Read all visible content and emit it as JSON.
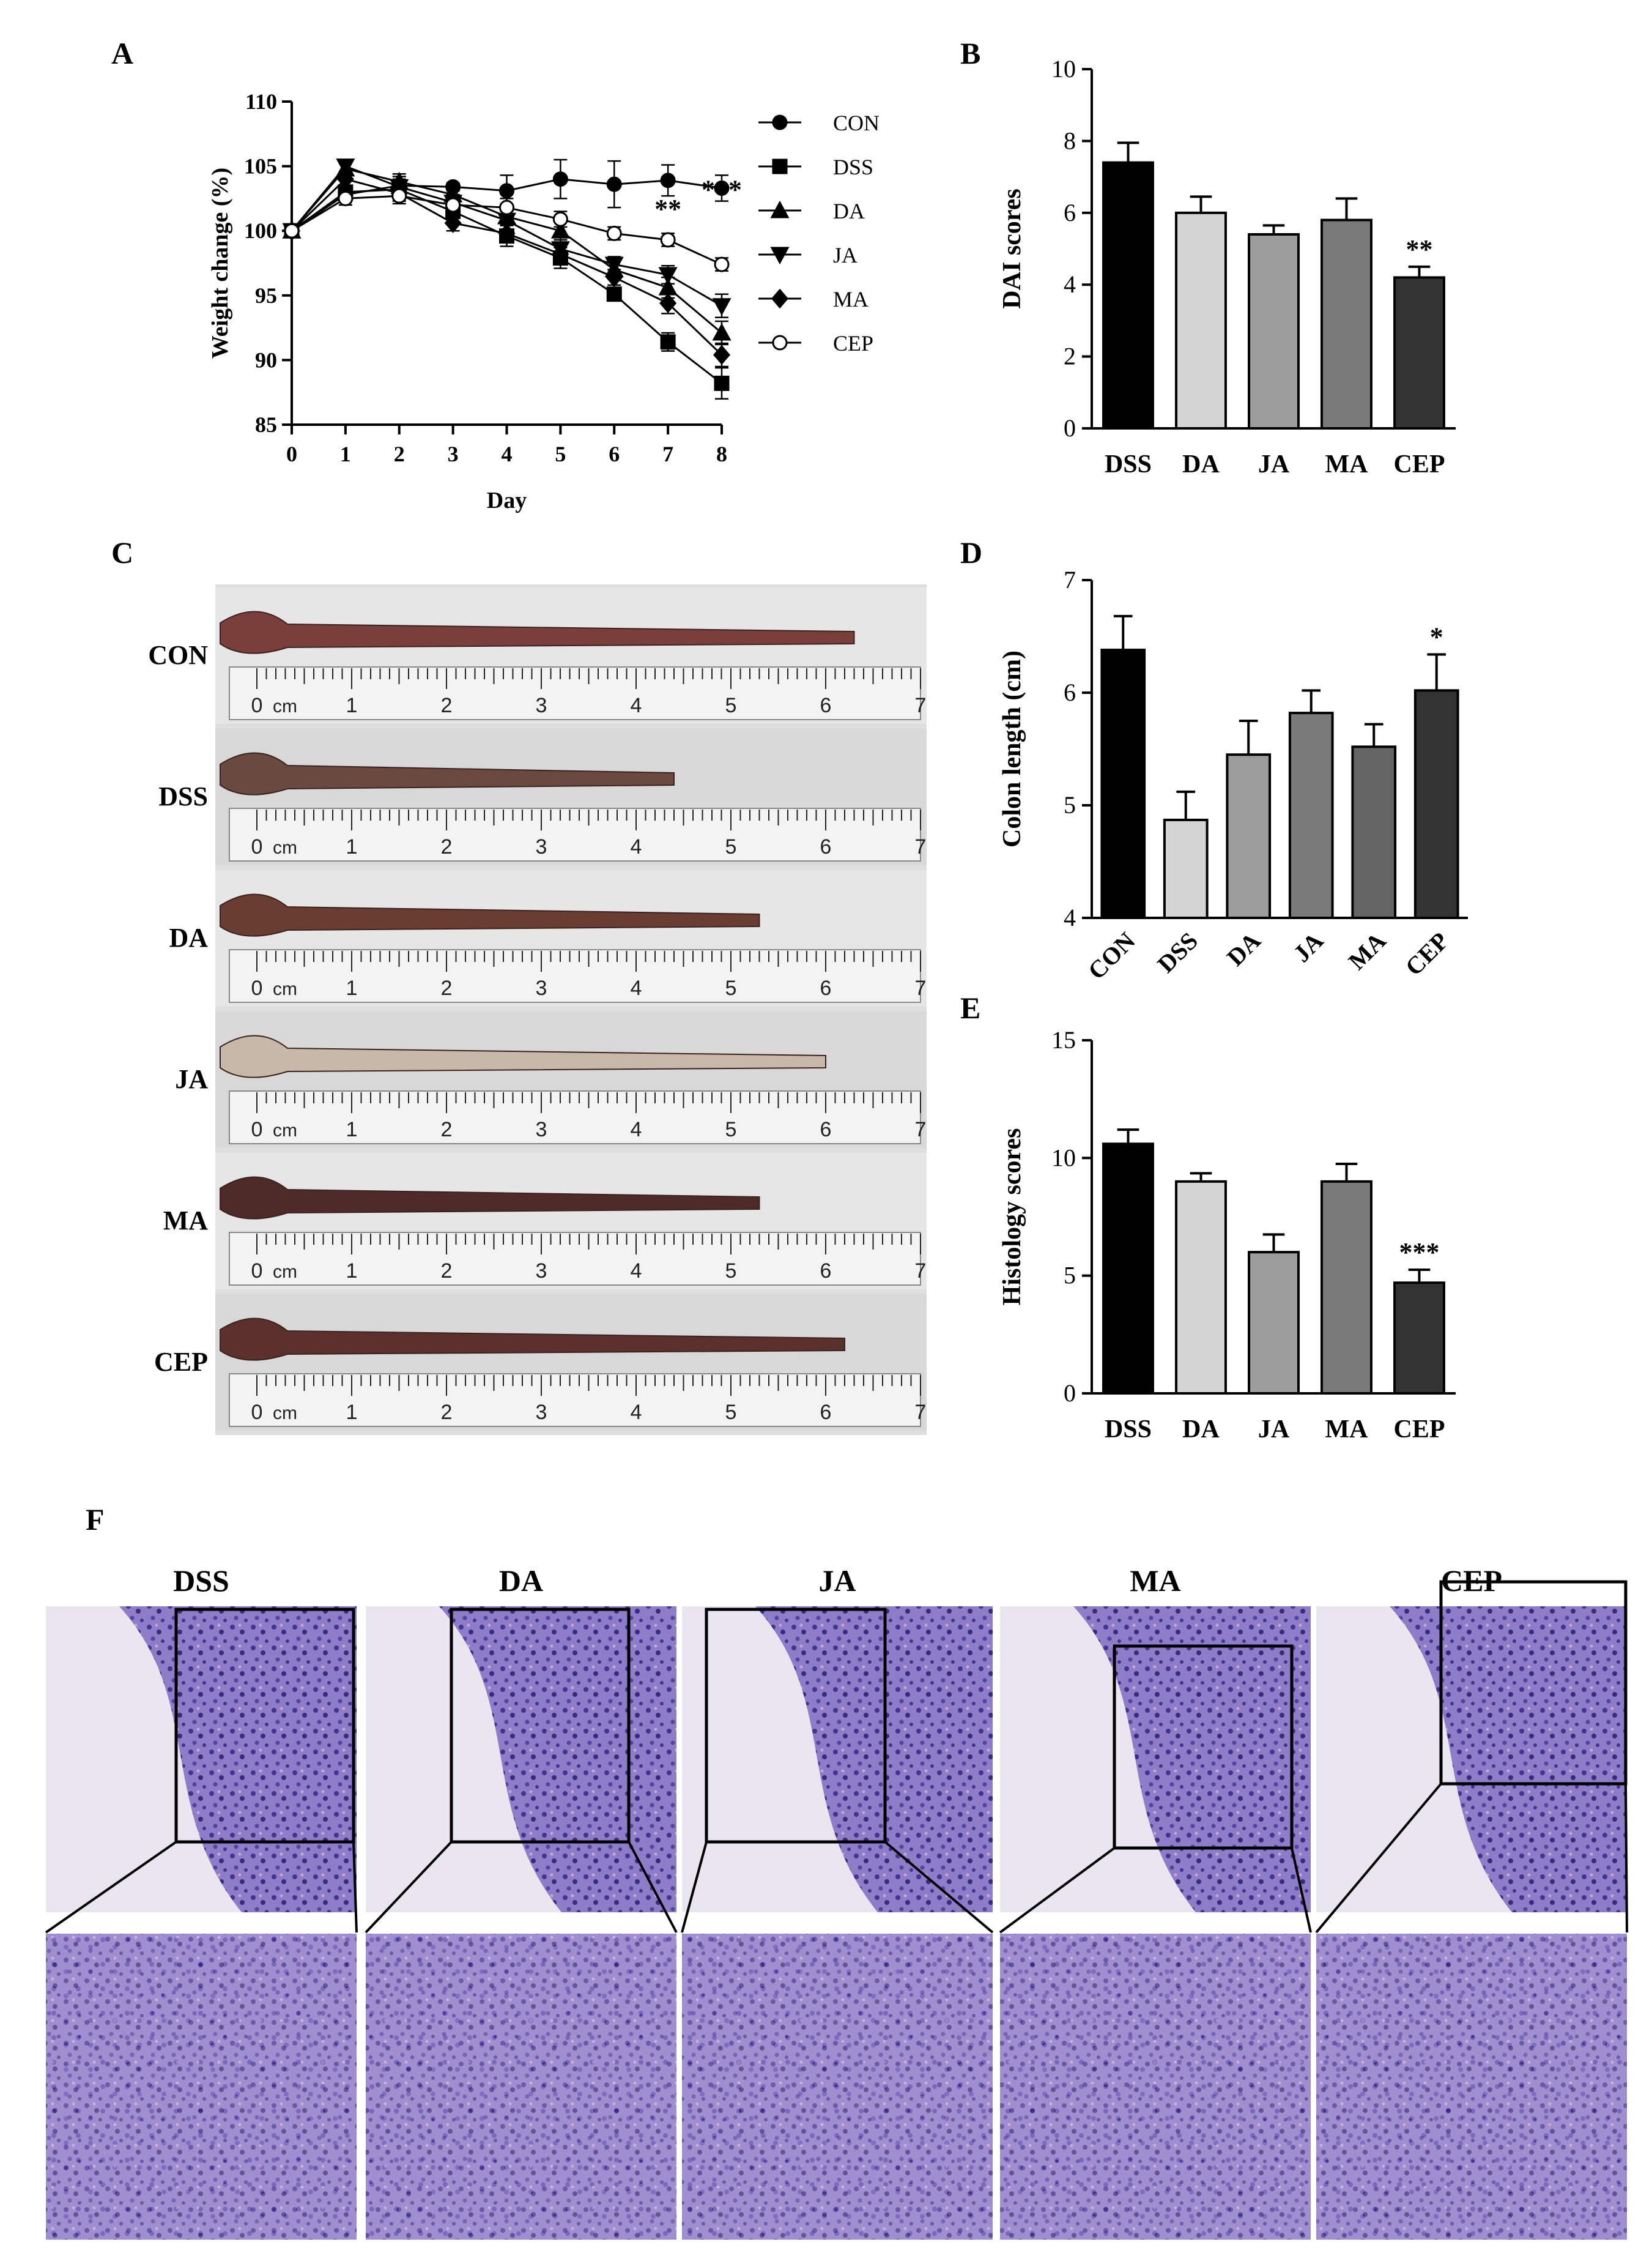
{
  "panels": {
    "A": {
      "letter": "A"
    },
    "B": {
      "letter": "B"
    },
    "C": {
      "letter": "C",
      "rows": [
        "CON",
        "DSS",
        "DA",
        "JA",
        "MA",
        "CEP"
      ],
      "ruler_unit": "cm"
    },
    "D": {
      "letter": "D"
    },
    "E": {
      "letter": "E"
    },
    "F": {
      "letter": "F",
      "groups": [
        "DSS",
        "DA",
        "JA",
        "MA",
        "CEP"
      ]
    }
  },
  "chart_data": [
    {
      "panel": "A",
      "type": "line",
      "xlabel": "Day",
      "ylabel": "Weight change (%)",
      "x": [
        0,
        1,
        2,
        3,
        4,
        5,
        6,
        7,
        8
      ],
      "xlim": [
        0,
        8
      ],
      "ylim": [
        85,
        110
      ],
      "yticks": [
        85,
        90,
        95,
        100,
        105,
        110
      ],
      "series": [
        {
          "name": "CON",
          "marker": "circle",
          "values": [
            100,
            102.8,
            103.5,
            103.4,
            103.1,
            104.0,
            103.6,
            103.9,
            103.3
          ],
          "err": [
            0.3,
            0.5,
            0.7,
            0.3,
            1.2,
            1.5,
            1.8,
            1.2,
            1.0
          ]
        },
        {
          "name": "DSS",
          "marker": "square",
          "values": [
            100,
            103.0,
            103.2,
            101.5,
            99.6,
            97.9,
            95.1,
            91.4,
            88.2
          ],
          "err": [
            0.3,
            0.5,
            0.6,
            0.9,
            0.8,
            0.8,
            0.5,
            0.7,
            1.2
          ]
        },
        {
          "name": "DA",
          "marker": "triangle-up",
          "values": [
            100,
            104.8,
            103.8,
            102.8,
            101.1,
            100.0,
            97.0,
            95.6,
            92.1
          ],
          "err": [
            0.3,
            0.5,
            0.6,
            0.7,
            0.7,
            0.7,
            0.7,
            0.8,
            0.9
          ]
        },
        {
          "name": "JA",
          "marker": "triangle-down",
          "values": [
            100,
            105.0,
            103.4,
            102.2,
            100.8,
            98.6,
            97.4,
            96.6,
            94.2
          ],
          "err": [
            0.3,
            0.5,
            0.6,
            0.6,
            0.7,
            0.7,
            0.6,
            0.7,
            0.9
          ]
        },
        {
          "name": "MA",
          "marker": "diamond",
          "values": [
            100,
            104.0,
            102.9,
            100.6,
            99.8,
            98.2,
            96.4,
            94.4,
            90.4
          ],
          "err": [
            0.3,
            0.5,
            0.6,
            0.6,
            0.7,
            0.7,
            0.6,
            0.8,
            0.9
          ]
        },
        {
          "name": "CEP",
          "marker": "circle-open",
          "values": [
            100,
            102.5,
            102.7,
            102.0,
            101.8,
            100.9,
            99.8,
            99.3,
            97.4
          ],
          "err": [
            0.3,
            0.5,
            0.6,
            0.6,
            0.7,
            0.6,
            0.5,
            0.5,
            0.5
          ]
        }
      ],
      "annotations": [
        {
          "x": 7,
          "y": 101.0,
          "text": "**"
        },
        {
          "x": 8,
          "y": 102.5,
          "text": "***"
        }
      ],
      "legend": "right"
    },
    {
      "panel": "B",
      "type": "bar",
      "ylabel": "DAI scores",
      "categories": [
        "DSS",
        "DA",
        "JA",
        "MA",
        "CEP"
      ],
      "values": [
        7.4,
        6.0,
        5.4,
        5.8,
        4.2
      ],
      "err": [
        0.55,
        0.45,
        0.25,
        0.6,
        0.3
      ],
      "colors": [
        "#000000",
        "#d4d4d4",
        "#9c9c9c",
        "#7a7a7a",
        "#333333"
      ],
      "ylim": [
        0,
        10
      ],
      "yticks": [
        0,
        2,
        4,
        6,
        8,
        10
      ],
      "annotations": [
        {
          "index": 4,
          "text": "**"
        }
      ]
    },
    {
      "panel": "D",
      "type": "bar",
      "ylabel": "Colon length (cm)",
      "categories": [
        "CON",
        "DSS",
        "DA",
        "JA",
        "MA",
        "CEP"
      ],
      "values": [
        6.38,
        4.87,
        5.45,
        5.82,
        5.52,
        6.02
      ],
      "err": [
        0.3,
        0.25,
        0.3,
        0.2,
        0.2,
        0.32
      ],
      "colors": [
        "#000000",
        "#d4d4d4",
        "#9c9c9c",
        "#7a7a7a",
        "#656565",
        "#333333"
      ],
      "ylim": [
        4,
        7
      ],
      "yticks": [
        4,
        5,
        6,
        7
      ],
      "annotations": [
        {
          "index": 5,
          "text": "*"
        }
      ]
    },
    {
      "panel": "E",
      "type": "bar",
      "ylabel": "Histology scores",
      "categories": [
        "DSS",
        "DA",
        "JA",
        "MA",
        "CEP"
      ],
      "values": [
        10.6,
        9.0,
        6.0,
        9.0,
        4.7
      ],
      "err": [
        0.6,
        0.35,
        0.75,
        0.75,
        0.55
      ],
      "colors": [
        "#000000",
        "#d4d4d4",
        "#9c9c9c",
        "#7a7a7a",
        "#333333"
      ],
      "ylim": [
        0,
        15
      ],
      "yticks": [
        0,
        5,
        10,
        15
      ],
      "annotations": [
        {
          "index": 4,
          "text": "***"
        }
      ]
    }
  ]
}
